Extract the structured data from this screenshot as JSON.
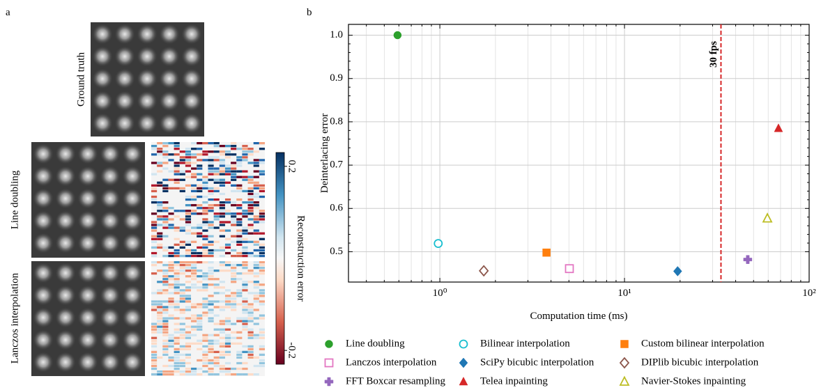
{
  "panel_a": {
    "label": "a",
    "rows": [
      "Ground truth",
      "Line doubling",
      "Lanczos interpolation"
    ],
    "colorbar": {
      "label": "Reconstruction error",
      "lim": [
        -0.23,
        0.23
      ],
      "ticks": [
        -0.2,
        0.2
      ]
    }
  },
  "chart_data": {
    "type": "scatter",
    "panel_label": "b",
    "x_label": "Computation time (ms)",
    "y_label": "Deinterlacing error",
    "x_log": true,
    "grid": true,
    "xlim": [
      0.32,
      100
    ],
    "ylim": [
      0.43,
      1.025
    ],
    "xticks": [
      {
        "value": 1,
        "label": "10⁰"
      },
      {
        "value": 10,
        "label": "10¹"
      },
      {
        "value": 100,
        "label": "10²"
      }
    ],
    "yticks": [
      0.5,
      0.6,
      0.7,
      0.8,
      0.9,
      {
        "value": 1,
        "label": "1.0"
      }
    ],
    "vline": {
      "x": 33.3,
      "label": "30 fps",
      "color": "#d62728"
    },
    "series": [
      {
        "name": "Line doubling",
        "color": "#2ca02c",
        "marker": "circle",
        "filled": true,
        "x": [
          0.59
        ],
        "values": [
          1.0
        ]
      },
      {
        "name": "Bilinear interpolation",
        "color": "#17becf",
        "marker": "circle",
        "filled": false,
        "x": [
          0.98
        ],
        "values": [
          0.519
        ]
      },
      {
        "name": "Custom bilinear interpolation",
        "color": "#ff7f0e",
        "marker": "square",
        "filled": true,
        "x": [
          3.78
        ],
        "values": [
          0.498
        ]
      },
      {
        "name": "Lanczos interpolation",
        "color": "#e377c2",
        "marker": "square",
        "filled": false,
        "x": [
          5.03
        ],
        "values": [
          0.461
        ]
      },
      {
        "name": "SciPy bicubic interpolation",
        "color": "#1f77b4",
        "marker": "diamond",
        "filled": true,
        "x": [
          19.4
        ],
        "values": [
          0.455
        ]
      },
      {
        "name": "DIPlib bicubic interpolation",
        "color": "#8c564b",
        "marker": "diamond",
        "filled": false,
        "x": [
          1.73
        ],
        "values": [
          0.456
        ]
      },
      {
        "name": "FFT Boxcar resampling",
        "color": "#9467bd",
        "marker": "plus",
        "filled": true,
        "x": [
          46.5
        ],
        "values": [
          0.482
        ]
      },
      {
        "name": "Telea inpainting",
        "color": "#d62728",
        "marker": "triangle",
        "filled": true,
        "x": [
          68.2
        ],
        "values": [
          0.785
        ]
      },
      {
        "name": "Navier-Stokes inpainting",
        "color": "#bcbd22",
        "marker": "triangle",
        "filled": false,
        "x": [
          59.4
        ],
        "values": [
          0.577
        ]
      }
    ]
  }
}
